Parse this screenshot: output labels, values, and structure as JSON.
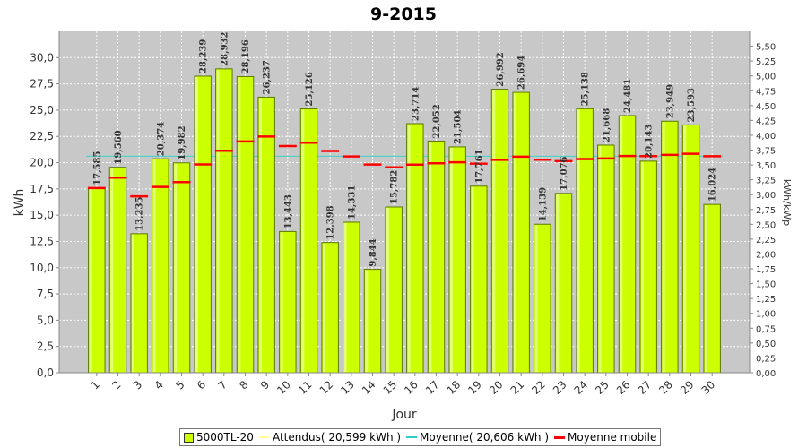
{
  "chart_data": {
    "type": "bar",
    "title": "9-2015",
    "xlabel": "Jour",
    "ylabel": "kWh",
    "y2label": "kWh/kWp",
    "ylim": [
      0,
      32.5
    ],
    "y2lim": [
      0,
      5.75
    ],
    "yticks": [
      "0,0",
      "2,5",
      "5,0",
      "7,5",
      "10,0",
      "12,5",
      "15,0",
      "17,5",
      "20,0",
      "22,5",
      "25,0",
      "27,5",
      "30,0"
    ],
    "y2ticks": [
      "0,00",
      "0,25",
      "0,50",
      "0,75",
      "1,00",
      "1,25",
      "1,50",
      "1,75",
      "2,00",
      "2,25",
      "2,50",
      "2,75",
      "3,00",
      "3,25",
      "3,50",
      "3,75",
      "4,00",
      "4,25",
      "4,50",
      "4,75",
      "5,00",
      "5,25",
      "5,50"
    ],
    "categories": [
      "1",
      "2",
      "3",
      "4",
      "5",
      "6",
      "7",
      "8",
      "9",
      "10",
      "11",
      "12",
      "13",
      "14",
      "15",
      "16",
      "17",
      "18",
      "19",
      "20",
      "21",
      "22",
      "23",
      "24",
      "25",
      "26",
      "27",
      "28",
      "29",
      "30"
    ],
    "series": [
      {
        "name": "5000TL-20",
        "type": "bar",
        "color": "#ccff00",
        "values": [
          17.585,
          19.56,
          13.235,
          20.374,
          19.982,
          28.239,
          28.932,
          28.196,
          26.237,
          13.443,
          25.126,
          12.398,
          14.331,
          9.844,
          15.782,
          23.714,
          22.052,
          21.504,
          17.761,
          26.992,
          26.694,
          14.139,
          17.076,
          25.138,
          21.668,
          24.481,
          20.143,
          23.949,
          23.593,
          16.024
        ],
        "labels": [
          "17,585",
          "19,560",
          "13,235",
          "20,374",
          "19,982",
          "28,239",
          "28,932",
          "28,196",
          "26,237",
          "13,443",
          "25,126",
          "12,398",
          "14,331",
          "9,844",
          "15,782",
          "23,714",
          "22,052",
          "21,504",
          "17,761",
          "26,992",
          "26,694",
          "14,139",
          "17,076",
          "25,138",
          "21,668",
          "24,481",
          "20,143",
          "23,949",
          "23,593",
          "16,024"
        ]
      },
      {
        "name": "Attendus( 20,599 kWh )",
        "type": "line",
        "color": "#ffff99",
        "value": 20.599
      },
      {
        "name": "Moyenne( 20,606 kWh )",
        "type": "line",
        "color": "#33cccc",
        "value": 20.606
      },
      {
        "name": "Moyenne mobile",
        "type": "step",
        "color": "#ff0000",
        "values": [
          17.585,
          18.573,
          16.793,
          17.689,
          18.147,
          19.829,
          21.13,
          22.015,
          22.485,
          21.582,
          21.905,
          21.112,
          20.591,
          19.823,
          19.554,
          19.813,
          19.944,
          20.031,
          19.912,
          20.266,
          20.571,
          20.279,
          20.139,
          20.347,
          20.399,
          20.635,
          20.617,
          20.737,
          20.85,
          20.606
        ]
      }
    ],
    "legend": "bottom"
  }
}
